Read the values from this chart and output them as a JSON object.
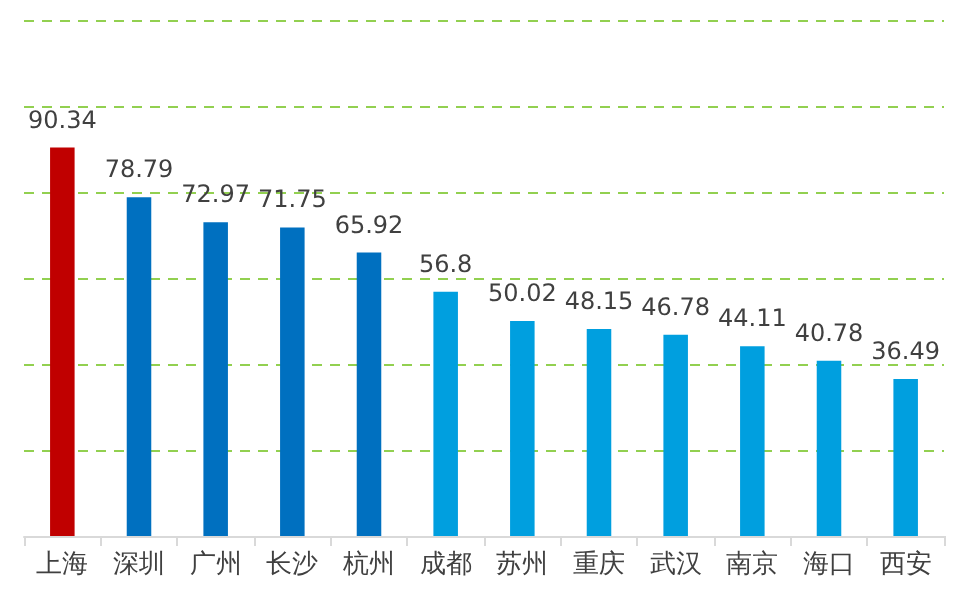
{
  "chart_data": {
    "type": "bar",
    "categories": [
      "上海",
      "深圳",
      "广州",
      "长沙",
      "杭州",
      "成都",
      "苏州",
      "重庆",
      "武汉",
      "南京",
      "海口",
      "西安"
    ],
    "values": [
      90.34,
      78.79,
      72.97,
      71.75,
      65.92,
      56.8,
      50.02,
      48.15,
      46.78,
      44.11,
      40.78,
      36.49
    ],
    "colors": [
      "#c00000",
      "#0070c0",
      "#0070c0",
      "#0070c0",
      "#0070c0",
      "#009fdf",
      "#009fdf",
      "#009fdf",
      "#009fdf",
      "#009fdf",
      "#009fdf",
      "#009fdf"
    ],
    "ylim": [
      0,
      120
    ],
    "yticks": [
      {
        "value": 0,
        "label": null
      },
      {
        "value": 20,
        "label": null
      },
      {
        "value": 40,
        "label": null
      },
      {
        "value": 60,
        "label": null
      },
      {
        "value": 80,
        "label": null
      },
      {
        "value": 100,
        "label": null
      },
      {
        "value": 120,
        "label": null
      }
    ],
    "grid": "y",
    "data_labels": true,
    "tick_labels": "x"
  }
}
